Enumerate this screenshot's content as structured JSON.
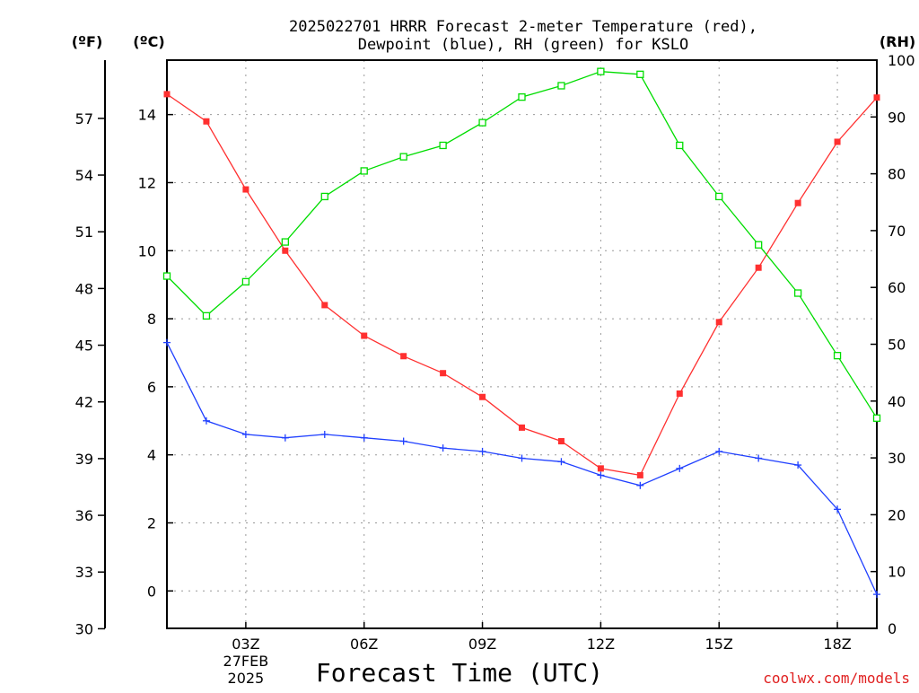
{
  "chart_data": {
    "type": "line",
    "title_line1": "2025022701 HRRR Forecast 2-meter Temperature (red),",
    "title_line2": "Dewpoint (blue), RH (green) for KSLO",
    "xlabel": "Forecast Time (UTC)",
    "watermark": "coolwx.com/models",
    "unit_labels": {
      "fahrenheit": "(ºF)",
      "celsius": "(ºC)",
      "rh": "(RH)"
    },
    "x_hours": [
      1,
      2,
      3,
      4,
      5,
      6,
      7,
      8,
      9,
      10,
      11,
      12,
      13,
      14,
      15,
      16,
      17,
      18,
      19
    ],
    "xlim": [
      1,
      19
    ],
    "x_ticks": [
      {
        "hour": 3,
        "label": "03Z",
        "sublabel1": "27FEB",
        "sublabel2": "2025"
      },
      {
        "hour": 6,
        "label": "06Z"
      },
      {
        "hour": 9,
        "label": "09Z"
      },
      {
        "hour": 12,
        "label": "12Z"
      },
      {
        "hour": 15,
        "label": "15Z"
      },
      {
        "hour": 18,
        "label": "18Z"
      }
    ],
    "celsius_axis": {
      "ylim": [
        -1.1,
        15.6
      ],
      "ticks": [
        "0",
        "2",
        "4",
        "6",
        "8",
        "10",
        "12",
        "14"
      ]
    },
    "fahrenheit_axis": {
      "ticks": [
        "30",
        "33",
        "36",
        "39",
        "42",
        "45",
        "48",
        "51",
        "54",
        "57"
      ]
    },
    "rh_axis": {
      "ylim": [
        0,
        100
      ],
      "ticks": [
        "0",
        "10",
        "20",
        "30",
        "40",
        "50",
        "60",
        "70",
        "80",
        "90",
        "100"
      ]
    },
    "grid": true,
    "series": [
      {
        "name": "Temperature",
        "axis": "celsius",
        "color": "#ff3030",
        "marker": "filled-square",
        "values": [
          14.6,
          13.8,
          11.8,
          10.0,
          8.4,
          7.5,
          6.9,
          6.4,
          5.7,
          4.8,
          4.4,
          3.6,
          3.4,
          5.8,
          7.9,
          9.5,
          11.4,
          13.2,
          14.5
        ]
      },
      {
        "name": "Dewpoint",
        "axis": "celsius",
        "color": "#2040ff",
        "marker": "plus",
        "values": [
          7.3,
          5.0,
          4.6,
          4.5,
          4.6,
          4.5,
          4.4,
          4.2,
          4.1,
          3.9,
          3.8,
          3.4,
          3.1,
          3.6,
          4.1,
          3.9,
          3.7,
          2.4,
          -0.1
        ]
      },
      {
        "name": "RH",
        "axis": "rh",
        "color": "#00dd00",
        "marker": "open-square",
        "values": [
          62,
          55,
          61,
          68,
          76,
          80.5,
          83,
          85,
          89,
          93.5,
          95.5,
          98,
          97.5,
          85,
          76,
          67.5,
          59,
          48,
          37
        ]
      }
    ]
  }
}
